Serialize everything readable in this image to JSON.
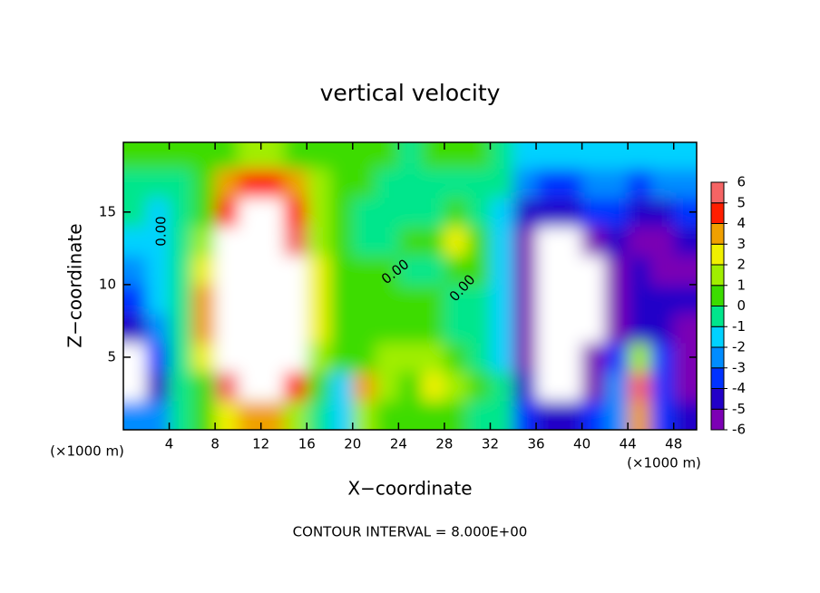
{
  "chart_data": {
    "type": "heatmap",
    "title": "vertical velocity",
    "x_label": "X−coordinate",
    "y_label": "Z−coordinate",
    "x_units": [
      "(×1000 m)",
      "(×1000 m)"
    ],
    "note": "CONTOUR INTERVAL = 8.000E+00",
    "contour_labels": [
      "0.00",
      "0.00",
      "0.00"
    ],
    "xlim": [
      0,
      50
    ],
    "ylim": [
      0,
      19.8
    ],
    "xticks": [
      4,
      8,
      12,
      16,
      20,
      24,
      28,
      32,
      36,
      40,
      44,
      48
    ],
    "yticks": [
      5,
      10,
      15
    ],
    "x": [
      1,
      3,
      5,
      7,
      9,
      11,
      13,
      15,
      17,
      19,
      21,
      23,
      25,
      27,
      29,
      31,
      33,
      35,
      37,
      39,
      41,
      43,
      45,
      47,
      49
    ],
    "y": [
      1,
      3,
      5,
      7,
      9,
      11,
      13,
      15,
      17,
      19
    ],
    "z": [
      [
        -2,
        -2,
        0,
        0.5,
        3,
        4,
        4,
        2,
        0,
        -1,
        2,
        1,
        0.5,
        1,
        0.5,
        0,
        -0.5,
        -3,
        -4,
        -4,
        -3,
        -2,
        4,
        -3,
        -4
      ],
      [
        -7,
        -4,
        0,
        1,
        6,
        7,
        7,
        5,
        0.5,
        -1,
        4,
        2,
        1,
        3,
        2,
        0.5,
        -0.5,
        -4,
        -8,
        -7,
        -5,
        -2,
        6,
        -3,
        -6
      ],
      [
        -7,
        -3,
        0,
        3,
        7,
        8,
        8,
        7,
        2,
        1,
        1,
        1.5,
        1.5,
        2,
        1,
        0,
        -1,
        -5,
        -8,
        -7,
        -5,
        -3,
        2,
        -3,
        -6
      ],
      [
        -4,
        -2,
        0,
        4,
        8,
        9,
        9,
        7,
        3,
        1,
        1,
        1,
        1,
        1,
        0,
        -0.5,
        -1,
        -6,
        -9,
        -9,
        -7,
        -5,
        -4,
        -4,
        -5
      ],
      [
        -3,
        -1,
        0,
        4,
        8,
        10,
        10,
        8,
        3,
        1,
        0.5,
        1,
        0.5,
        0.5,
        0,
        -0.5,
        -1,
        -6,
        -9,
        -9,
        -7,
        -5,
        -4,
        -4,
        -4
      ],
      [
        -2,
        -1,
        0,
        3,
        8,
        10,
        9,
        8,
        3,
        1,
        0.5,
        0.5,
        0,
        0,
        1,
        0.5,
        -1,
        -5,
        -9,
        -9,
        -7,
        -5,
        -4,
        -5,
        -5
      ],
      [
        -1,
        -1.5,
        -0.5,
        2,
        7,
        9,
        8,
        6,
        2,
        0.5,
        0,
        0,
        0.5,
        1,
        3,
        0.5,
        -1,
        -5,
        -8,
        -7,
        -5,
        -4,
        -5,
        -5,
        -4
      ],
      [
        -0.5,
        -1,
        -0.5,
        1,
        5,
        7,
        7,
        5,
        2,
        0.5,
        0,
        0,
        0,
        0,
        0.5,
        0,
        -1,
        -4,
        -4.5,
        -4,
        -3,
        -3,
        -4,
        -4,
        -3
      ],
      [
        0,
        -0.5,
        0,
        1,
        4,
        5,
        5,
        4,
        2,
        0.5,
        0.3,
        0,
        0,
        0,
        0,
        0,
        -0.5,
        -2,
        -3,
        -3,
        -2,
        -2,
        -3,
        -2,
        -2
      ],
      [
        0.5,
        0.5,
        0.3,
        0.5,
        1,
        1.5,
        1.5,
        1,
        0.5,
        0.5,
        0.3,
        0.3,
        0,
        0.2,
        0.3,
        0.5,
        0,
        -1,
        -1.5,
        -1.5,
        -1,
        -1,
        -1,
        -1,
        -1
      ]
    ],
    "colorbar_ticks": [
      -6,
      -5,
      -4,
      -3,
      -2,
      -1,
      0,
      1,
      2,
      3,
      4,
      5,
      6
    ],
    "colorbar_colors": [
      "#7c00b4",
      "#2200c8",
      "#0032ff",
      "#008cff",
      "#00d2ff",
      "#00e68c",
      "#3cdc00",
      "#a0ee00",
      "#f0f000",
      "#f0a000",
      "#ff1e00",
      "#f56464"
    ],
    "over_color": "#ffffff",
    "under_color": "#ffffff"
  }
}
